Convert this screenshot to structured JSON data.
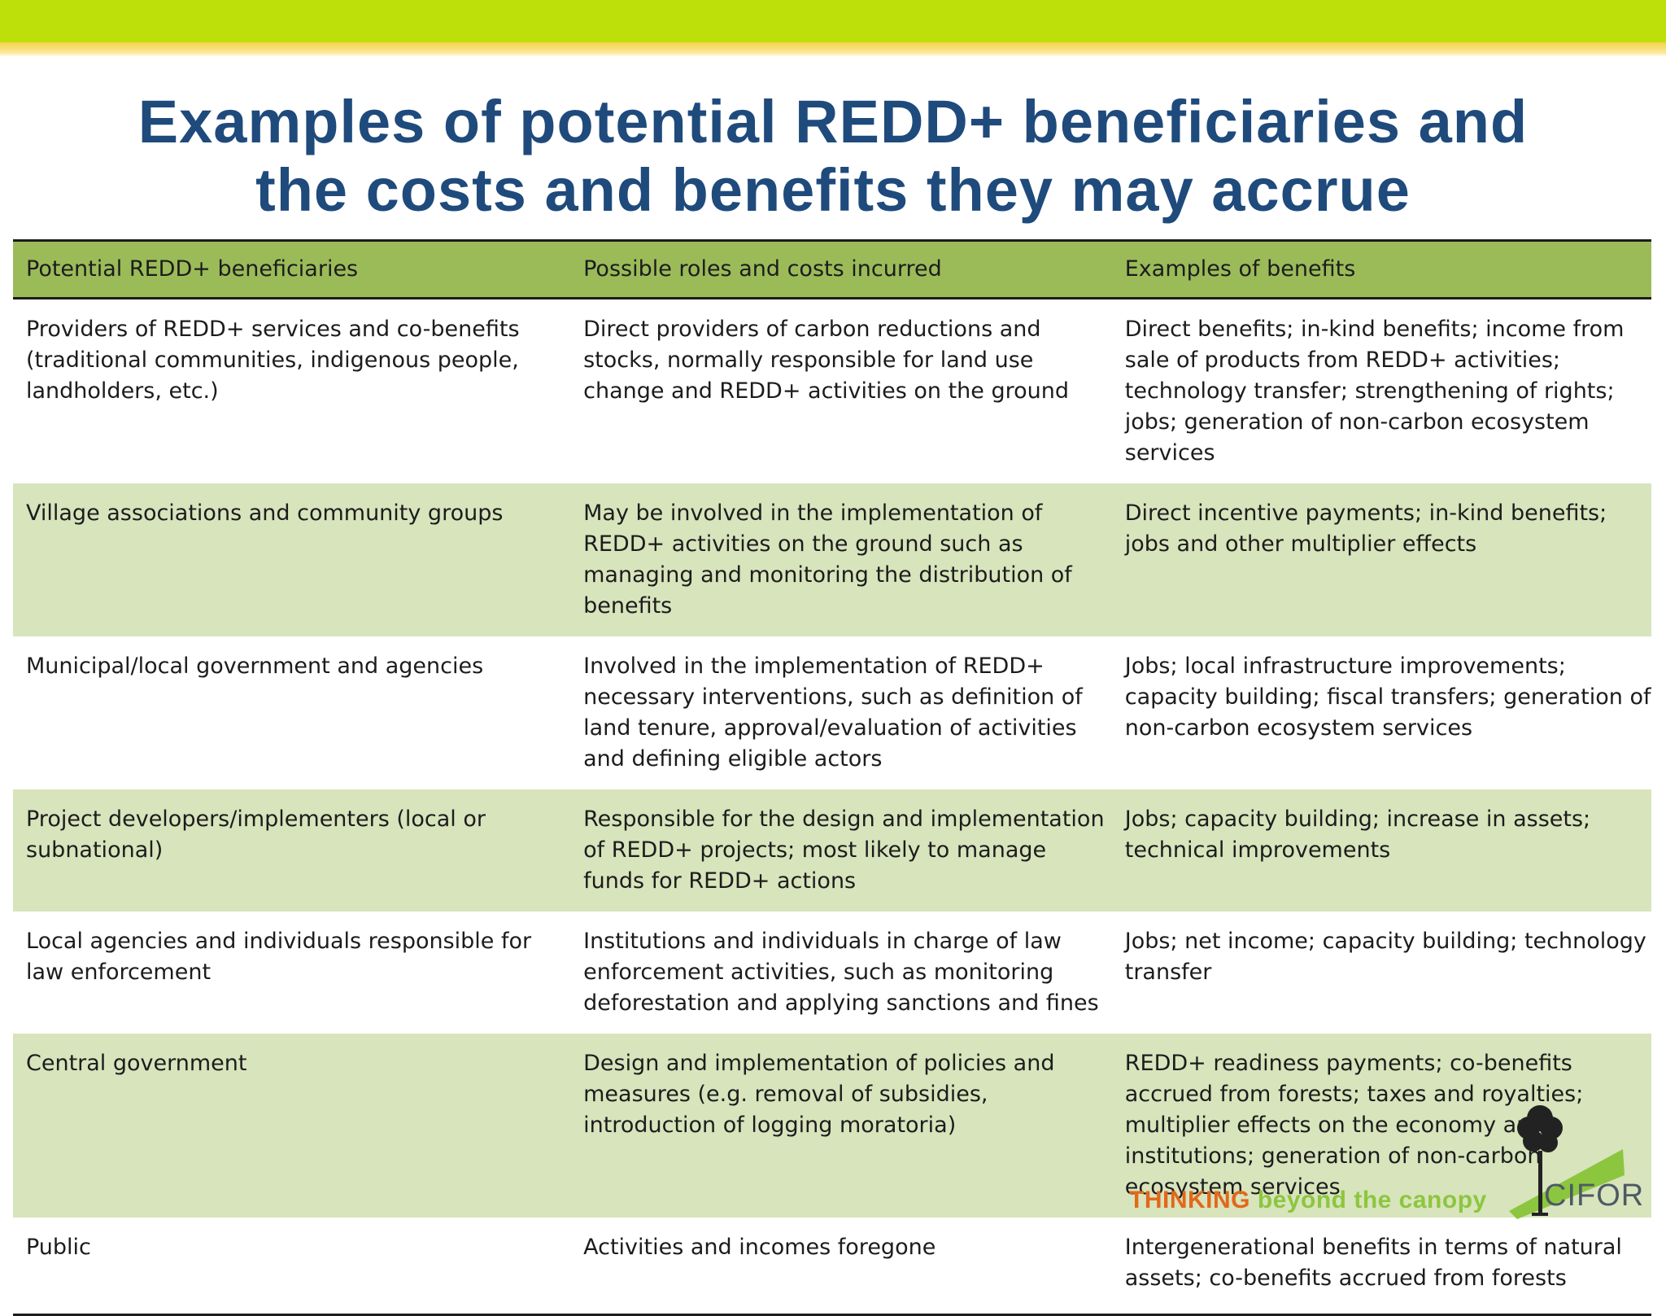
{
  "slide": {
    "title_line1": "Examples of potential REDD+ beneficiaries and",
    "title_line2": "the costs and benefits they may accrue"
  },
  "table": {
    "headers": [
      "Potential REDD+ beneficiaries",
      "Possible roles and costs incurred",
      "Examples of benefits"
    ],
    "rows": [
      [
        "Providers of REDD+ services and co-benefits (traditional communities, indigenous people, landholders, etc.)",
        "Direct providers of carbon reductions and stocks, normally responsible for land use change and REDD+ activities on the ground",
        "Direct benefits; in-kind benefits; income from sale of products from REDD+ activities; technology transfer; strengthening of rights; jobs; generation of non-carbon ecosystem services"
      ],
      [
        "Village associations and community groups",
        "May be involved in the implementation of REDD+ activities on the ground such as managing and monitoring the distribution of benefits",
        "Direct incentive payments; in-kind benefits; jobs and other multiplier effects"
      ],
      [
        "Municipal/local government and agencies",
        "Involved in the implementation of REDD+ necessary interventions, such as definition of land tenure, approval/evaluation of activities and defining eligible actors",
        "Jobs; local infrastructure improvements; capacity building; fiscal transfers; generation of non-carbon ecosystem services"
      ],
      [
        "Project developers/implementers (local or subnational)",
        "Responsible for the design and implementation of REDD+ projects; most likely to manage funds for REDD+ actions",
        "Jobs; capacity building; increase in assets; technical improvements"
      ],
      [
        "Local agencies and individuals responsible for law enforcement",
        "Institutions and individuals in charge of law enforcement activities, such as monitoring deforestation and applying sanctions and fines",
        "Jobs; net income; capacity building; technology transfer"
      ],
      [
        "Central government",
        "Design and implementation of policies and measures (e.g. removal of subsidies, introduction of logging moratoria)",
        "REDD+ readiness payments; co-benefits accrued from forests; taxes and royalties; multiplier effects on the economy and institutions; generation of non-carbon ecosystem services"
      ],
      [
        "Public",
        "Activities and incomes foregone",
        "Intergenerational benefits in terms of natural assets; co-benefits accrued from forests"
      ]
    ]
  },
  "footer": {
    "tagline_part1": "THINKING",
    "tagline_part2": " beyond the canopy",
    "logo_text": "CIFOR",
    "logo_icon": "tree-icon"
  },
  "colors": {
    "accent_green": "#bde00a",
    "accent_yellow": "#f4d24a",
    "title_blue": "#1f4a7c",
    "header_green": "#9bbb59",
    "row_shade": "#d8e4bc",
    "tagline_orange": "#e2681b",
    "tagline_green": "#8cc63f"
  }
}
